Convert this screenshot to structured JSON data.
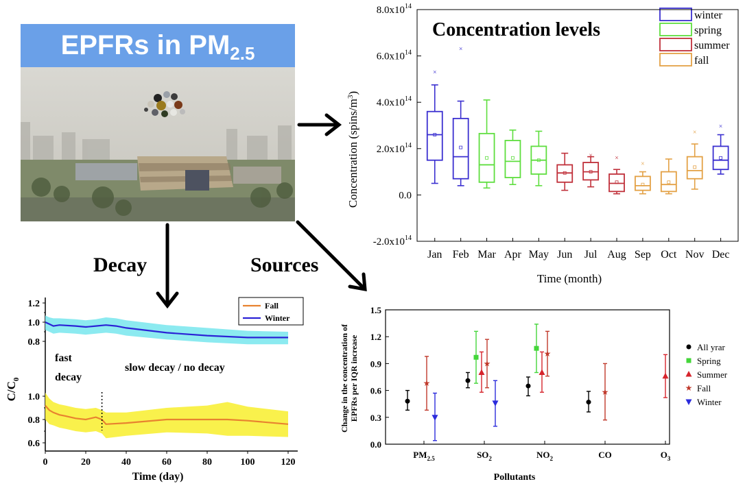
{
  "photo": {
    "title_main": "EPFRs in PM",
    "title_sub": "2.5"
  },
  "labels": {
    "decay": "Decay",
    "sources": "Sources"
  },
  "chart_data": [
    {
      "type": "box",
      "id": "concentration",
      "title": "Concentration levels",
      "xlabel": "Time (month)",
      "ylabel": "Concentration (spins/m",
      "ylabel_sup": "3",
      "ylim": [
        -2.0,
        8.0
      ],
      "yticks": [
        {
          "v": -2,
          "mant": "-2.0x10",
          "exp": "14"
        },
        {
          "v": 0,
          "mant": "0.0",
          "exp": ""
        },
        {
          "v": 2,
          "mant": "2.0x10",
          "exp": "14"
        },
        {
          "v": 4,
          "mant": "4.0x10",
          "exp": "14"
        },
        {
          "v": 6,
          "mant": "6.0x10",
          "exp": "14"
        },
        {
          "v": 8,
          "mant": "8.0x10",
          "exp": "14"
        }
      ],
      "colors": {
        "winter": "#3a2fd0",
        "spring": "#5ede3e",
        "summer": "#c0303a",
        "fall": "#e3a145"
      },
      "legend": [
        "winter",
        "spring",
        "summer",
        "fall"
      ],
      "categories": [
        "Jan",
        "Feb",
        "Mar",
        "Apr",
        "May",
        "Jun",
        "Jul",
        "Aug",
        "Sep",
        "Oct",
        "Nov",
        "Dec"
      ],
      "seasons": [
        "winter",
        "winter",
        "spring",
        "spring",
        "spring",
        "summer",
        "summer",
        "summer",
        "fall",
        "fall",
        "fall",
        "winter"
      ],
      "boxes": [
        {
          "min": 0.5,
          "q1": 1.5,
          "median": 2.6,
          "q3": 3.6,
          "max": 4.75,
          "mean": 2.6,
          "outlier": 5.3
        },
        {
          "min": 0.4,
          "q1": 0.7,
          "median": 1.65,
          "q3": 3.3,
          "max": 4.05,
          "mean": 2.05,
          "outlier": 6.3
        },
        {
          "min": 0.3,
          "q1": 0.55,
          "median": 1.3,
          "q3": 2.65,
          "max": 4.1,
          "mean": 1.6,
          "outlier": null
        },
        {
          "min": 0.45,
          "q1": 0.75,
          "median": 1.45,
          "q3": 2.35,
          "max": 2.8,
          "mean": 1.6,
          "outlier": null
        },
        {
          "min": 0.4,
          "q1": 0.9,
          "median": 1.5,
          "q3": 2.1,
          "max": 2.75,
          "mean": 1.5,
          "outlier": null
        },
        {
          "min": 0.2,
          "q1": 0.55,
          "median": 0.95,
          "q3": 1.3,
          "max": 1.8,
          "mean": 0.95,
          "outlier": null
        },
        {
          "min": 0.35,
          "q1": 0.65,
          "median": 1.0,
          "q3": 1.4,
          "max": 1.65,
          "mean": 1.0,
          "outlier": 1.7
        },
        {
          "min": 0.05,
          "q1": 0.15,
          "median": 0.5,
          "q3": 0.9,
          "max": 1.1,
          "mean": 0.55,
          "outlier": 1.6
        },
        {
          "min": 0.05,
          "q1": 0.2,
          "median": 0.4,
          "q3": 0.8,
          "max": 1.0,
          "mean": 0.45,
          "outlier": 1.35
        },
        {
          "min": 0.05,
          "q1": 0.15,
          "median": 0.45,
          "q3": 1.0,
          "max": 1.55,
          "mean": 0.55,
          "outlier": null
        },
        {
          "min": 0.25,
          "q1": 0.7,
          "median": 1.05,
          "q3": 1.65,
          "max": 2.2,
          "mean": 1.2,
          "outlier": 2.7
        },
        {
          "min": 0.9,
          "q1": 1.1,
          "median": 1.5,
          "q3": 2.1,
          "max": 2.6,
          "mean": 1.6,
          "outlier": 2.95
        }
      ]
    },
    {
      "type": "line",
      "id": "decay",
      "xlabel": "Time (day)",
      "ylabel_main": "C/C",
      "ylabel_sub": "0",
      "xlim": [
        0,
        120
      ],
      "xticks": [
        0,
        20,
        40,
        60,
        80,
        100,
        120
      ],
      "top_panel": {
        "ylim": [
          0.7,
          1.25
        ],
        "yticks": [
          0.8,
          1.0,
          1.2
        ]
      },
      "bottom_panel": {
        "ylim": [
          0.55,
          1.05
        ],
        "yticks": [
          0.6,
          0.8,
          1.0
        ]
      },
      "top_ytick_labels": [
        "1.2",
        "1.0",
        "0.8"
      ],
      "bottom_ytick_labels": [
        "1.0",
        "0.8",
        "0.6"
      ],
      "xtick_labels": [
        "0",
        "20",
        "40",
        "60",
        "80",
        "100",
        "120"
      ],
      "annotations": {
        "fast": "fast",
        "decay": "decay",
        "slow": "slow decay / no decay"
      },
      "vline_x": 28,
      "series": [
        {
          "name": "Fall",
          "color": "#e8822f",
          "band_color": "#f8ef38",
          "x": [
            0,
            2,
            4,
            7,
            10,
            15,
            20,
            25,
            28,
            30,
            40,
            60,
            80,
            90,
            100,
            120
          ],
          "y": [
            0.92,
            0.88,
            0.86,
            0.84,
            0.83,
            0.81,
            0.8,
            0.82,
            0.8,
            0.76,
            0.77,
            0.8,
            0.8,
            0.8,
            0.79,
            0.76
          ],
          "upper": [
            1.03,
            0.98,
            0.95,
            0.93,
            0.92,
            0.9,
            0.89,
            0.9,
            0.88,
            0.86,
            0.86,
            0.9,
            0.92,
            0.95,
            0.91,
            0.87
          ],
          "lower": [
            0.8,
            0.76,
            0.75,
            0.73,
            0.72,
            0.7,
            0.69,
            0.7,
            0.68,
            0.64,
            0.66,
            0.69,
            0.68,
            0.66,
            0.66,
            0.65
          ]
        },
        {
          "name": "Winter",
          "color": "#2b22d6",
          "band_color": "#7fe8ee",
          "x": [
            0,
            2,
            4,
            7,
            15,
            20,
            25,
            30,
            35,
            40,
            60,
            80,
            100,
            120
          ],
          "y": [
            1.0,
            0.98,
            0.96,
            0.97,
            0.96,
            0.95,
            0.96,
            0.97,
            0.96,
            0.94,
            0.89,
            0.86,
            0.84,
            0.84
          ],
          "upper": [
            1.07,
            1.05,
            1.04,
            1.04,
            1.03,
            1.02,
            1.03,
            1.05,
            1.04,
            1.02,
            0.97,
            0.94,
            0.91,
            0.9
          ],
          "lower": [
            0.92,
            0.9,
            0.88,
            0.89,
            0.88,
            0.87,
            0.88,
            0.89,
            0.88,
            0.86,
            0.82,
            0.79,
            0.77,
            0.77
          ]
        }
      ]
    },
    {
      "type": "errorbar",
      "id": "sources",
      "xlabel": "Pollutants",
      "ylabel_line1": "Change in the concentration of",
      "ylabel_line2": "EPFRs per IQR increase",
      "ylim": [
        0.0,
        1.5
      ],
      "yticks": [
        "0.0",
        "0.3",
        "0.6",
        "0.9",
        "1.2",
        "1.5"
      ],
      "categories": [
        {
          "main": "PM",
          "sub": "2.5"
        },
        {
          "main": "SO",
          "sub": "2"
        },
        {
          "main": "NO",
          "sub": "2"
        },
        {
          "main": "CO",
          "sub": ""
        },
        {
          "main": "O",
          "sub": "3"
        }
      ],
      "series": [
        {
          "name": "All yrar",
          "color": "#000000",
          "marker": "circle",
          "points": [
            {
              "cat": 0,
              "y": 0.48,
              "lo": 0.38,
              "hi": 0.6
            },
            {
              "cat": 1,
              "y": 0.71,
              "lo": 0.63,
              "hi": 0.8
            },
            {
              "cat": 2,
              "y": 0.65,
              "lo": 0.54,
              "hi": 0.75
            },
            {
              "cat": 3,
              "y": 0.47,
              "lo": 0.36,
              "hi": 0.59
            }
          ]
        },
        {
          "name": "Spring",
          "color": "#44d63a",
          "marker": "square",
          "points": [
            {
              "cat": 1,
              "y": 0.97,
              "lo": 0.68,
              "hi": 1.26
            },
            {
              "cat": 2,
              "y": 1.07,
              "lo": 0.8,
              "hi": 1.34
            }
          ]
        },
        {
          "name": "Summer",
          "color": "#d6242c",
          "marker": "triangle-up",
          "points": [
            {
              "cat": 1,
              "y": 0.8,
              "lo": 0.58,
              "hi": 1.03
            },
            {
              "cat": 2,
              "y": 0.8,
              "lo": 0.58,
              "hi": 1.03
            },
            {
              "cat": 4,
              "y": 0.76,
              "lo": 0.52,
              "hi": 1.0
            }
          ]
        },
        {
          "name": "Fall",
          "color": "#c0392b",
          "marker": "star",
          "points": [
            {
              "cat": 0,
              "y": 0.68,
              "lo": 0.38,
              "hi": 0.98
            },
            {
              "cat": 1,
              "y": 0.9,
              "lo": 0.63,
              "hi": 1.17
            },
            {
              "cat": 2,
              "y": 1.01,
              "lo": 0.76,
              "hi": 1.26
            },
            {
              "cat": 3,
              "y": 0.58,
              "lo": 0.27,
              "hi": 0.9
            }
          ]
        },
        {
          "name": "Winter",
          "color": "#2b2bdc",
          "marker": "triangle-down",
          "points": [
            {
              "cat": 0,
              "y": 0.3,
              "lo": 0.04,
              "hi": 0.57
            },
            {
              "cat": 1,
              "y": 0.46,
              "lo": 0.2,
              "hi": 0.71
            }
          ]
        }
      ]
    }
  ]
}
